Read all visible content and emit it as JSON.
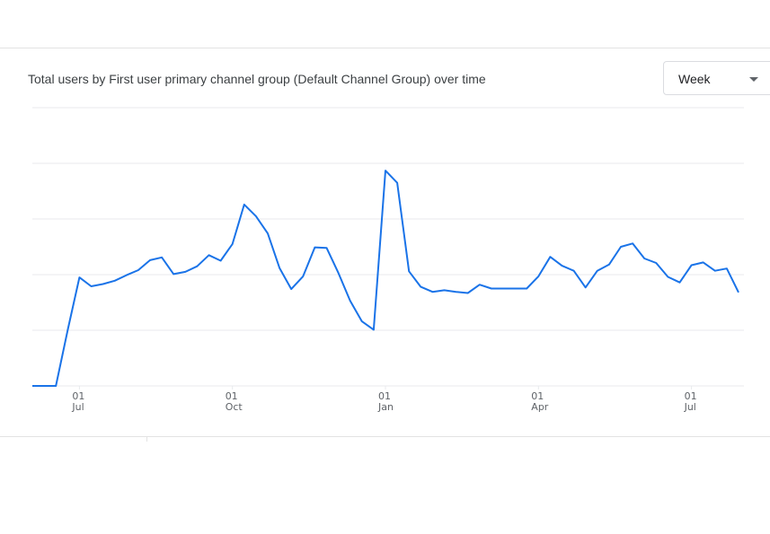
{
  "card": {
    "title": "Total users by First user primary channel group (Default Channel Group) over time"
  },
  "granularity_select": {
    "selected": "Week",
    "caret_icon": "arrow-drop-down-icon"
  },
  "colors": {
    "line": "#1a73e8",
    "grid": "#e8eaed",
    "tick_text": "#5f6368"
  },
  "chart_data": {
    "type": "line",
    "title": "Total users by First user primary channel group (Default Channel Group) over time",
    "xlabel": "",
    "ylabel": "",
    "y_tick_labels_visible": false,
    "grid": true,
    "legend": "none",
    "x_ticks": [
      {
        "day": "01",
        "month": "Jul",
        "week_index": 4
      },
      {
        "day": "01",
        "month": "Oct",
        "week_index": 17
      },
      {
        "day": "01",
        "month": "Jan",
        "week_index": 30
      },
      {
        "day": "01",
        "month": "Apr",
        "week_index": 43
      },
      {
        "day": "01",
        "month": "Jul",
        "week_index": 56
      }
    ],
    "y_grid_levels": [
      0,
      1,
      2,
      3,
      4,
      5
    ],
    "series": [
      {
        "values": [
          0,
          0,
          0,
          1,
          1.95,
          1.79,
          1.83,
          1.89,
          1.99,
          2.08,
          2.26,
          2.31,
          2.01,
          2.05,
          2.15,
          2.35,
          2.25,
          2.55,
          3.26,
          3.05,
          2.74,
          2.12,
          1.74,
          1.97,
          2.49,
          2.48,
          2.03,
          1.53,
          1.16,
          1.01,
          3.87,
          3.65,
          2.06,
          1.78,
          1.69,
          1.72,
          1.69,
          1.67,
          1.82,
          1.75,
          1.75,
          1.75,
          1.75,
          1.97,
          2.32,
          2.16,
          2.07,
          1.77,
          2.07,
          2.18,
          2.5,
          2.56,
          2.29,
          2.21,
          1.96,
          1.86,
          2.17,
          2.22,
          2.07,
          2.11,
          1.68
        ]
      }
    ]
  }
}
